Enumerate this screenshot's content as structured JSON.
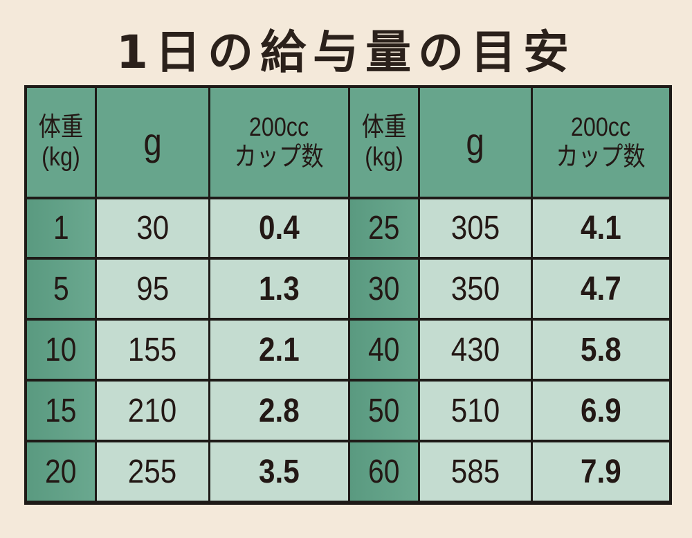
{
  "title": "1日の給与量の目安",
  "headers": {
    "weight_line1": "体重",
    "weight_line2": "(kg)",
    "grams": "g",
    "cups_line1": "200cc",
    "cups_line2": "カップ数"
  },
  "colors": {
    "background": "#f4e9da",
    "header": "#67a58c",
    "cell": "#c4dcd0",
    "border": "#1e1a17"
  },
  "chart_data": {
    "type": "table",
    "title": "1日の給与量の目安",
    "columns": [
      "体重(kg)",
      "g",
      "200ccカップ数"
    ],
    "rows": [
      [
        "1",
        "30",
        "0.4"
      ],
      [
        "5",
        "95",
        "1.3"
      ],
      [
        "10",
        "155",
        "2.1"
      ],
      [
        "15",
        "210",
        "2.8"
      ],
      [
        "20",
        "255",
        "3.5"
      ],
      [
        "25",
        "305",
        "4.1"
      ],
      [
        "30",
        "350",
        "4.7"
      ],
      [
        "40",
        "430",
        "5.8"
      ],
      [
        "50",
        "510",
        "6.9"
      ],
      [
        "60",
        "585",
        "7.9"
      ]
    ]
  },
  "left": [
    {
      "w": "1",
      "g": "30",
      "c": "0.4"
    },
    {
      "w": "5",
      "g": "95",
      "c": "1.3"
    },
    {
      "w": "10",
      "g": "155",
      "c": "2.1"
    },
    {
      "w": "15",
      "g": "210",
      "c": "2.8"
    },
    {
      "w": "20",
      "g": "255",
      "c": "3.5"
    }
  ],
  "right": [
    {
      "w": "25",
      "g": "305",
      "c": "4.1"
    },
    {
      "w": "30",
      "g": "350",
      "c": "4.7"
    },
    {
      "w": "40",
      "g": "430",
      "c": "5.8"
    },
    {
      "w": "50",
      "g": "510",
      "c": "6.9"
    },
    {
      "w": "60",
      "g": "585",
      "c": "7.9"
    }
  ]
}
